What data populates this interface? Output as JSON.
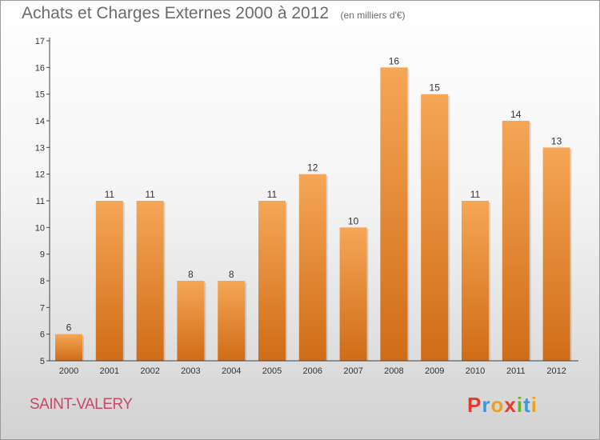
{
  "title": "Achats et Charges Externes 2000 à 2012",
  "unit": "(en milliers d'€)",
  "commune": "SAINT-VALERY",
  "logo": {
    "letters": [
      "P",
      "r",
      "o",
      "x",
      "i",
      "t",
      "i"
    ],
    "colors": [
      "#e8392b",
      "#3a9ad9",
      "#f0a020",
      "#e8392b",
      "#6ab42d",
      "#3a9ad9",
      "#f0a020"
    ]
  },
  "colors": {
    "bar_top": "#f5a656",
    "bar_bottom": "#d06c17",
    "label": "#333333",
    "axis": "#444444"
  },
  "chart_data": {
    "type": "bar",
    "categories": [
      "2000",
      "2001",
      "2002",
      "2003",
      "2004",
      "2005",
      "2006",
      "2007",
      "2008",
      "2009",
      "2010",
      "2011",
      "2012"
    ],
    "values": [
      6,
      11,
      11,
      8,
      8,
      11,
      12,
      10,
      16,
      15,
      11,
      14,
      13
    ],
    "data_labels": [
      "6",
      "11",
      "11",
      "8",
      "8",
      "11",
      "12",
      "10",
      "16",
      "15",
      "11",
      "14",
      "13"
    ],
    "yticks": [
      "5",
      "6",
      "7",
      "8",
      "9",
      "10",
      "11",
      "12",
      "13",
      "14",
      "15",
      "16",
      "17"
    ],
    "ylim": [
      5,
      17
    ],
    "grid": false,
    "legend": "none"
  }
}
